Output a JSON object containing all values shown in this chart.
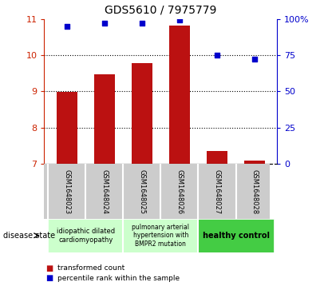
{
  "title": "GDS5610 / 7975779",
  "samples": [
    "GSM1648023",
    "GSM1648024",
    "GSM1648025",
    "GSM1648026",
    "GSM1648027",
    "GSM1648028"
  ],
  "bar_values": [
    8.98,
    9.47,
    9.78,
    10.82,
    7.36,
    7.08
  ],
  "scatter_values": [
    95,
    97,
    97,
    99,
    75,
    72
  ],
  "bar_color": "#bb1111",
  "scatter_color": "#0000cc",
  "ylim_left": [
    7,
    11
  ],
  "ylim_right": [
    0,
    100
  ],
  "yticks_left": [
    7,
    8,
    9,
    10,
    11
  ],
  "yticks_right": [
    0,
    25,
    50,
    75,
    100
  ],
  "ytick_labels_right": [
    "0",
    "25",
    "50",
    "75",
    "100%"
  ],
  "grid_lines": [
    8,
    9,
    10
  ],
  "bar_width": 0.55,
  "label_color_left": "#cc2200",
  "label_color_right": "#0000cc",
  "bg_color_plot": "#ffffff",
  "sample_box_color": "#cccccc",
  "group1_color": "#ccffcc",
  "group2_color": "#ccffcc",
  "group3_color": "#44cc44",
  "legend_bar_label": "transformed count",
  "legend_scatter_label": "percentile rank within the sample",
  "disease_state_label": "disease state"
}
